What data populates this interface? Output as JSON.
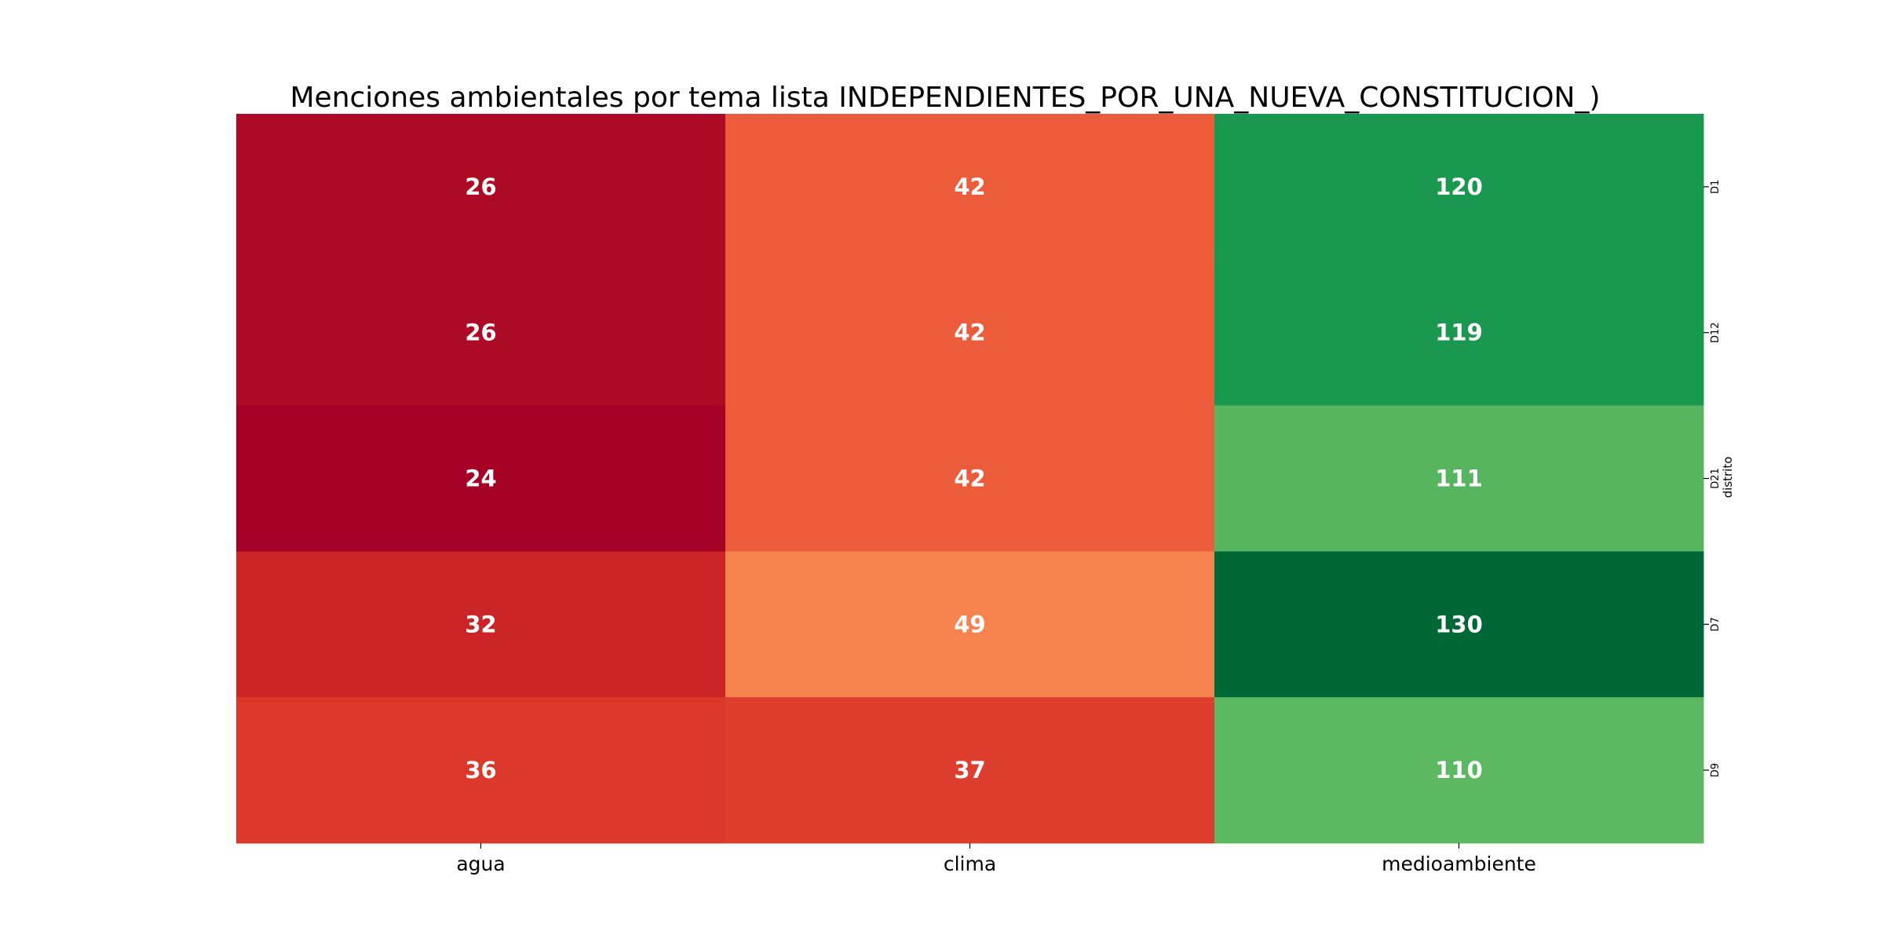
{
  "chart_data": {
    "type": "heatmap",
    "title": "Menciones ambientales por tema lista INDEPENDIENTES_POR_UNA_NUEVA_CONSTITUCION_)",
    "xlabel": "",
    "ylabel": "distrito",
    "x_categories": [
      "agua",
      "clima",
      "medioambiente"
    ],
    "y_categories": [
      "D1",
      "D12",
      "D21",
      "D7",
      "D9"
    ],
    "values": [
      [
        26,
        42,
        120
      ],
      [
        26,
        42,
        119
      ],
      [
        24,
        42,
        111
      ],
      [
        32,
        49,
        130
      ],
      [
        36,
        37,
        110
      ]
    ],
    "colorscale": "RdYlGn",
    "colorbar": false,
    "y_axis_side": "right",
    "annotations": true,
    "cell_colors": [
      [
        "#ad0a26",
        "#ec5c3b",
        "#1a9850"
      ],
      [
        "#ad0a26",
        "#ec5c3b",
        "#1a9850"
      ],
      [
        "#a50026",
        "#ec5c3b",
        "#57b55f"
      ],
      [
        "#ca2427",
        "#f7844e",
        "#006837"
      ],
      [
        "#db382b",
        "#de3e2e",
        "#5db961"
      ]
    ]
  }
}
